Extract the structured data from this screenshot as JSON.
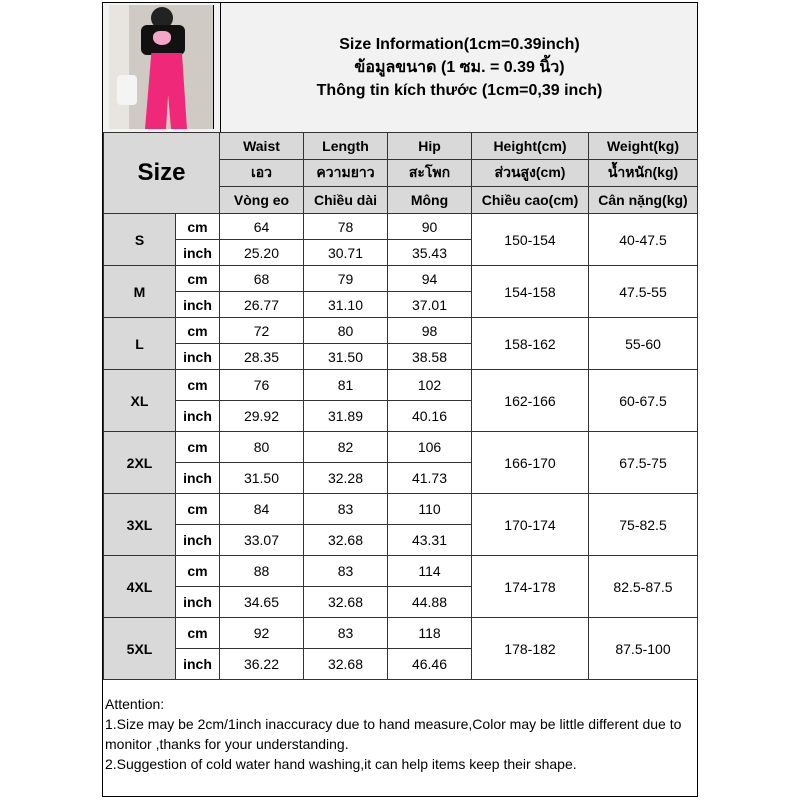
{
  "title_lines": [
    "Size Information(1cm=0.39inch)",
    "ข้อมูลขนาด (1 ซม. = 0.39 นิ้ว)",
    "Thông tin kích thước (1cm=0,39 inch)"
  ],
  "size_header": "Size",
  "columns": [
    {
      "en": "Waist",
      "th": "เอว",
      "vi": "Vòng eo"
    },
    {
      "en": "Length",
      "th": "ความยาว",
      "vi": "Chiều dài"
    },
    {
      "en": "Hip",
      "th": "สะโพก",
      "vi": "Mông"
    },
    {
      "en": "Height(cm)",
      "th": "ส่วนสูง(cm)",
      "vi": "Chiều cao(cm)"
    },
    {
      "en": "Weight(kg)",
      "th": "น้ำหนัก(kg)",
      "vi": "Cân nặng(kg)"
    }
  ],
  "units": [
    "cm",
    "inch"
  ],
  "rows": [
    {
      "size": "S",
      "cm": [
        "64",
        "78",
        "90"
      ],
      "inch": [
        "25.20",
        "30.71",
        "35.43"
      ],
      "height": "150-154",
      "weight": "40-47.5"
    },
    {
      "size": "M",
      "cm": [
        "68",
        "79",
        "94"
      ],
      "inch": [
        "26.77",
        "31.10",
        "37.01"
      ],
      "height": "154-158",
      "weight": "47.5-55"
    },
    {
      "size": "L",
      "cm": [
        "72",
        "80",
        "98"
      ],
      "inch": [
        "28.35",
        "31.50",
        "38.58"
      ],
      "height": "158-162",
      "weight": "55-60"
    },
    {
      "size": "XL",
      "cm": [
        "76",
        "81",
        "102"
      ],
      "inch": [
        "29.92",
        "31.89",
        "40.16"
      ],
      "height": "162-166",
      "weight": "60-67.5"
    },
    {
      "size": "2XL",
      "cm": [
        "80",
        "82",
        "106"
      ],
      "inch": [
        "31.50",
        "32.28",
        "41.73"
      ],
      "height": "166-170",
      "weight": "67.5-75"
    },
    {
      "size": "3XL",
      "cm": [
        "84",
        "83",
        "110"
      ],
      "inch": [
        "33.07",
        "32.68",
        "43.31"
      ],
      "height": "170-174",
      "weight": "75-82.5"
    },
    {
      "size": "4XL",
      "cm": [
        "88",
        "83",
        "114"
      ],
      "inch": [
        "34.65",
        "32.68",
        "44.88"
      ],
      "height": "174-178",
      "weight": "82.5-87.5"
    },
    {
      "size": "5XL",
      "cm": [
        "92",
        "83",
        "118"
      ],
      "inch": [
        "36.22",
        "32.68",
        "46.46"
      ],
      "height": "178-182",
      "weight": "87.5-100"
    }
  ],
  "attention": {
    "heading": "Attention:",
    "lines": [
      "1.Size may be 2cm/1inch inaccuracy due to hand measure,Color may be little different due to monitor ,thanks for your understanding.",
      "2.Suggestion of cold water hand washing,it can help items keep their shape."
    ]
  }
}
